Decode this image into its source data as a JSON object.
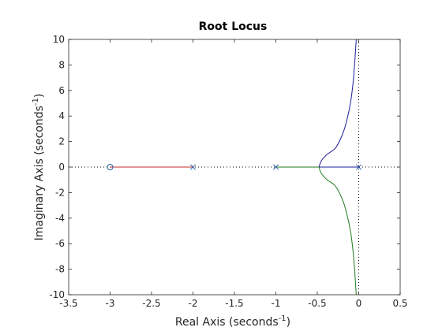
{
  "chart_data": {
    "type": "line",
    "title": "Root Locus",
    "xlabel_main": "Real Axis (seconds",
    "xlabel_sup": "-1",
    "xlabel_end": ")",
    "ylabel_main": "Imaginary Axis (seconds",
    "ylabel_sup": "-1",
    "ylabel_end": ")",
    "xlim": [
      -3.5,
      0.5
    ],
    "ylim": [
      -10,
      10
    ],
    "xticks": [
      -3.5,
      -3,
      -2.5,
      -2,
      -1.5,
      -1,
      -0.5,
      0,
      0.5
    ],
    "yticks": [
      -10,
      -8,
      -6,
      -4,
      -2,
      0,
      2,
      4,
      6,
      8,
      10
    ],
    "xtick_labels": [
      "-3.5",
      "-3",
      "-2.5",
      "-2",
      "-1.5",
      "-1",
      "-0.5",
      "0",
      "0.5"
    ],
    "ytick_labels": [
      "-10",
      "-8",
      "-6",
      "-4",
      "-2",
      "0",
      "2",
      "4",
      "6",
      "8",
      "10"
    ],
    "grid": false,
    "reference_lines": {
      "x": 0,
      "y": 0,
      "style": "dotted"
    },
    "poles": [
      [
        0,
        0
      ],
      [
        -1,
        0
      ],
      [
        -2,
        0
      ]
    ],
    "zeros": [
      [
        -3,
        0
      ]
    ],
    "marker_color": "#2a5fa8",
    "series": [
      {
        "color": "#c0292b",
        "x": [
          -2,
          -3
        ],
        "y": [
          0,
          0
        ]
      },
      {
        "color": "#1f1f9e",
        "x": [
          0,
          -0.48,
          -0.45,
          -0.38,
          -0.28,
          -0.2,
          -0.15,
          -0.1,
          -0.07,
          -0.05,
          -0.04,
          -0.03
        ],
        "y": [
          0,
          0,
          0.5,
          1.0,
          1.5,
          2.5,
          3.5,
          5.0,
          6.5,
          8.0,
          9.0,
          10.0
        ]
      },
      {
        "color": "#1f7a1f",
        "x": [
          -1,
          -0.48,
          -0.45,
          -0.38,
          -0.28,
          -0.2,
          -0.15,
          -0.1,
          -0.07,
          -0.05,
          -0.04,
          -0.03
        ],
        "y": [
          0,
          0,
          -0.5,
          -1.0,
          -1.5,
          -2.5,
          -3.5,
          -5.0,
          -6.5,
          -8.0,
          -9.0,
          -10.0
        ]
      }
    ]
  }
}
